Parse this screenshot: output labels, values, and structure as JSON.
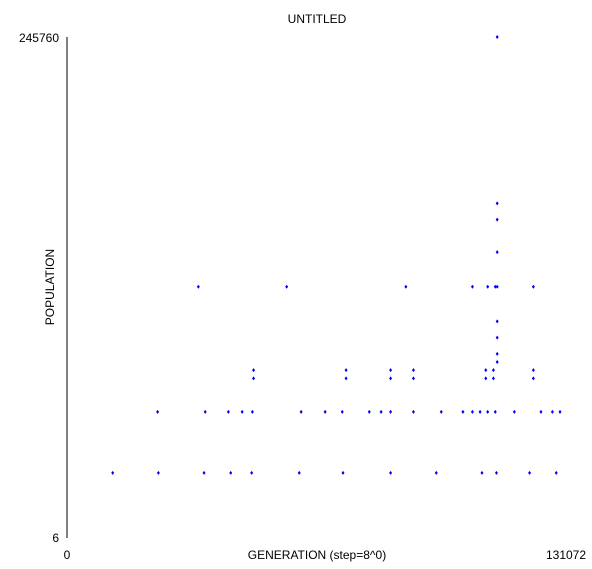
{
  "chart_data": {
    "type": "scatter",
    "title": "UNTITLED",
    "xlabel": "GENERATION (step=8^0)",
    "ylabel": "POPULATION",
    "x_tick_labels": [
      "0",
      "131072"
    ],
    "y_tick_labels": [
      "6",
      "245760"
    ],
    "xlim": [
      0,
      131072
    ],
    "ylim": [
      6,
      245760
    ],
    "point_color": "#0000ff",
    "grid": false,
    "legend": "none",
    "series": [
      {
        "points": [
          [
            113000,
            245760
          ],
          [
            113000,
            164000
          ],
          [
            113000,
            156000
          ],
          [
            113000,
            140000
          ],
          [
            34500,
            123000
          ],
          [
            57700,
            123000
          ],
          [
            89000,
            123000
          ],
          [
            106500,
            123000
          ],
          [
            110500,
            123000
          ],
          [
            112500,
            123000
          ],
          [
            113000,
            123000
          ],
          [
            122500,
            123000
          ],
          [
            113000,
            106000
          ],
          [
            113000,
            98000
          ],
          [
            113000,
            90000
          ],
          [
            113000,
            86000
          ],
          [
            49000,
            82000
          ],
          [
            49000,
            78000
          ],
          [
            73300,
            82000
          ],
          [
            73300,
            78000
          ],
          [
            85000,
            82000
          ],
          [
            85000,
            78000
          ],
          [
            91000,
            82000
          ],
          [
            91000,
            78000
          ],
          [
            110000,
            82000
          ],
          [
            112000,
            82000
          ],
          [
            110000,
            78000
          ],
          [
            112000,
            78000
          ],
          [
            122500,
            82000
          ],
          [
            122500,
            78000
          ],
          [
            23800,
            61500
          ],
          [
            36300,
            61500
          ],
          [
            42400,
            61500
          ],
          [
            46000,
            61500
          ],
          [
            48700,
            61500
          ],
          [
            61500,
            61500
          ],
          [
            67800,
            61500
          ],
          [
            72300,
            61500
          ],
          [
            79400,
            61500
          ],
          [
            82500,
            61500
          ],
          [
            85000,
            61500
          ],
          [
            91000,
            61500
          ],
          [
            98300,
            61500
          ],
          [
            104000,
            61500
          ],
          [
            106500,
            61500
          ],
          [
            108500,
            61500
          ],
          [
            110500,
            61500
          ],
          [
            112500,
            61500
          ],
          [
            117500,
            61500
          ],
          [
            124500,
            61500
          ],
          [
            127500,
            61500
          ],
          [
            129500,
            61500
          ],
          [
            12000,
            31500
          ],
          [
            24000,
            31500
          ],
          [
            36000,
            31500
          ],
          [
            43000,
            31500
          ],
          [
            48500,
            31500
          ],
          [
            61000,
            31500
          ],
          [
            72500,
            31500
          ],
          [
            85000,
            31500
          ],
          [
            97000,
            31500
          ],
          [
            109000,
            31500
          ],
          [
            112800,
            31500
          ],
          [
            121500,
            31500
          ],
          [
            128500,
            31500
          ]
        ]
      }
    ]
  }
}
